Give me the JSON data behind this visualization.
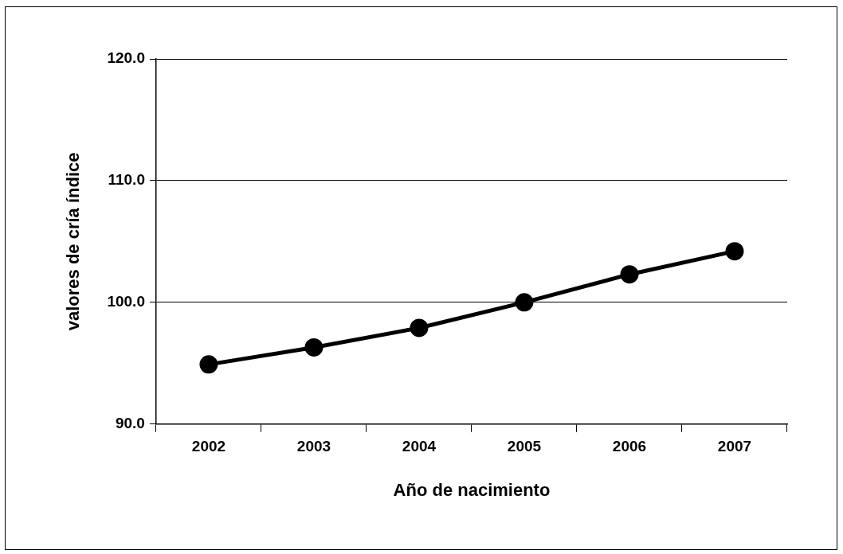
{
  "chart_data": {
    "type": "line",
    "xlabel": "Año de nacimiento",
    "ylabel": "valores de cría índice",
    "categories": [
      "2002",
      "2003",
      "2004",
      "2005",
      "2006",
      "2007"
    ],
    "series": [
      {
        "color": "#000000",
        "values": [
          94.9,
          96.3,
          97.9,
          100.0,
          102.3,
          104.2
        ]
      }
    ],
    "ylim": [
      90,
      120
    ],
    "yticks": [
      {
        "value": 90,
        "label": "90.0"
      },
      {
        "value": 100,
        "label": "100.0"
      },
      {
        "value": 110,
        "label": "110.0"
      },
      {
        "value": 120,
        "label": "120.0"
      }
    ],
    "grid": "y",
    "legend": false,
    "marker": "circle",
    "line_style": "solid"
  }
}
